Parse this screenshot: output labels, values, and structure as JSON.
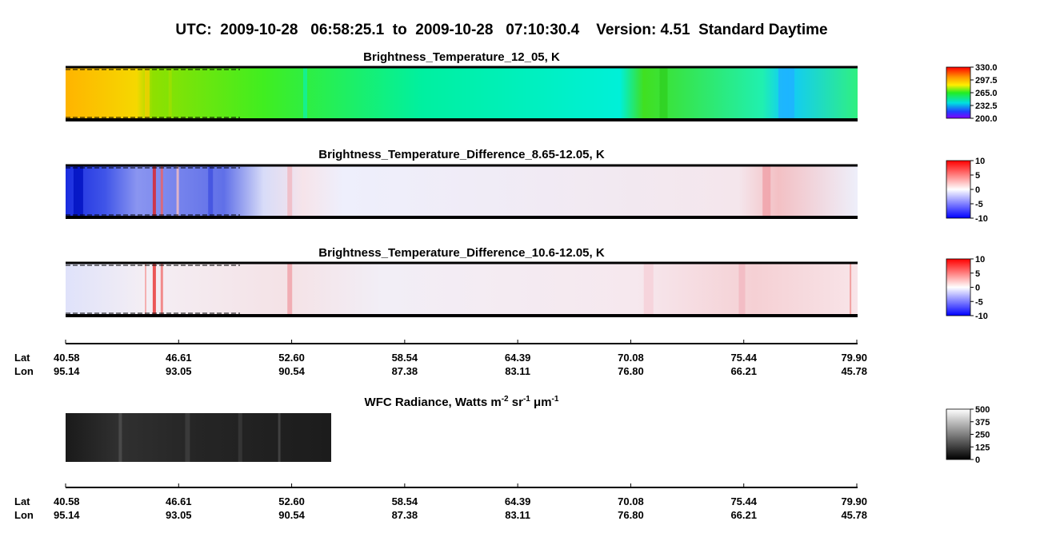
{
  "title": "UTC:  2009-10-28   06:58:25.1  to  2009-10-28   07:10:30.4    Version: 4.51  Standard Daytime",
  "panels": [
    {
      "title": "Brightness_Temperature_12_05, K",
      "colorbar": {
        "lim": [
          200,
          330
        ],
        "ticks": [
          {
            "value": 330,
            "label": "330.0"
          },
          {
            "value": 297.5,
            "label": "297.5"
          },
          {
            "value": 265,
            "label": "265.0"
          },
          {
            "value": 232.5,
            "label": "232.5"
          },
          {
            "value": 200,
            "label": "200.0"
          }
        ]
      }
    },
    {
      "title": "Brightness_Temperature_Difference_8.65-12.05, K",
      "colorbar": {
        "lim": [
          -10,
          10
        ],
        "ticks": [
          10,
          5,
          0,
          -5,
          -10
        ]
      }
    },
    {
      "title": "Brightness_Temperature_Difference_10.6-12.05, K",
      "colorbar": {
        "lim": [
          -10,
          10
        ],
        "ticks": [
          10,
          5,
          0,
          -5,
          -10
        ]
      }
    },
    {
      "title_parts": [
        "WFC Radiance, Watts m",
        "-2",
        " sr",
        "-1",
        " μm",
        "-1"
      ],
      "colorbar": {
        "lim": [
          0,
          500
        ],
        "ticks": [
          500,
          375,
          250,
          125,
          0
        ]
      }
    }
  ],
  "axes": [
    {
      "lat_label": "Lat",
      "lon_label": "Lon",
      "ticks": [
        {
          "lat": "40.58",
          "lon": "95.14"
        },
        {
          "lat": "46.61",
          "lon": "93.05"
        },
        {
          "lat": "52.60",
          "lon": "90.54"
        },
        {
          "lat": "58.54",
          "lon": "87.38"
        },
        {
          "lat": "64.39",
          "lon": "83.11"
        },
        {
          "lat": "70.08",
          "lon": "76.80"
        },
        {
          "lat": "75.44",
          "lon": "66.21"
        },
        {
          "lat": "79.90",
          "lon": "45.78"
        }
      ]
    },
    {
      "lat_label": "Lat",
      "lon_label": "Lon",
      "ticks": [
        {
          "lat": "40.58",
          "lon": "95.14"
        },
        {
          "lat": "46.61",
          "lon": "93.05"
        },
        {
          "lat": "52.60",
          "lon": "90.54"
        },
        {
          "lat": "58.54",
          "lon": "87.38"
        },
        {
          "lat": "64.39",
          "lon": "83.11"
        },
        {
          "lat": "70.08",
          "lon": "76.80"
        },
        {
          "lat": "75.44",
          "lon": "66.21"
        },
        {
          "lat": "79.90",
          "lon": "45.78"
        }
      ]
    }
  ]
}
